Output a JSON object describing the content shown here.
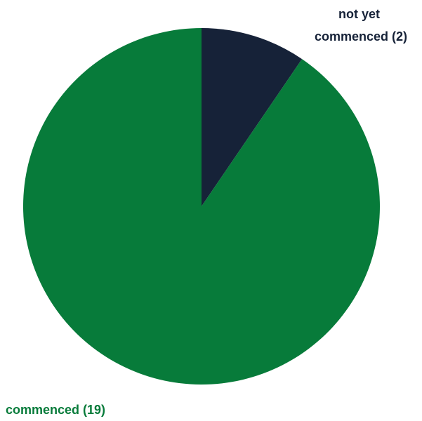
{
  "chart_data": {
    "type": "pie",
    "title": "",
    "start_angle": "12 o'clock",
    "direction": "clockwise",
    "slices": [
      {
        "label_lines": [
          "not yet",
          "commenced (2)"
        ],
        "value": 2,
        "color": "#162238"
      },
      {
        "label_lines": [
          "commenced (19)"
        ],
        "value": 19,
        "color": "#077B3A"
      }
    ]
  }
}
